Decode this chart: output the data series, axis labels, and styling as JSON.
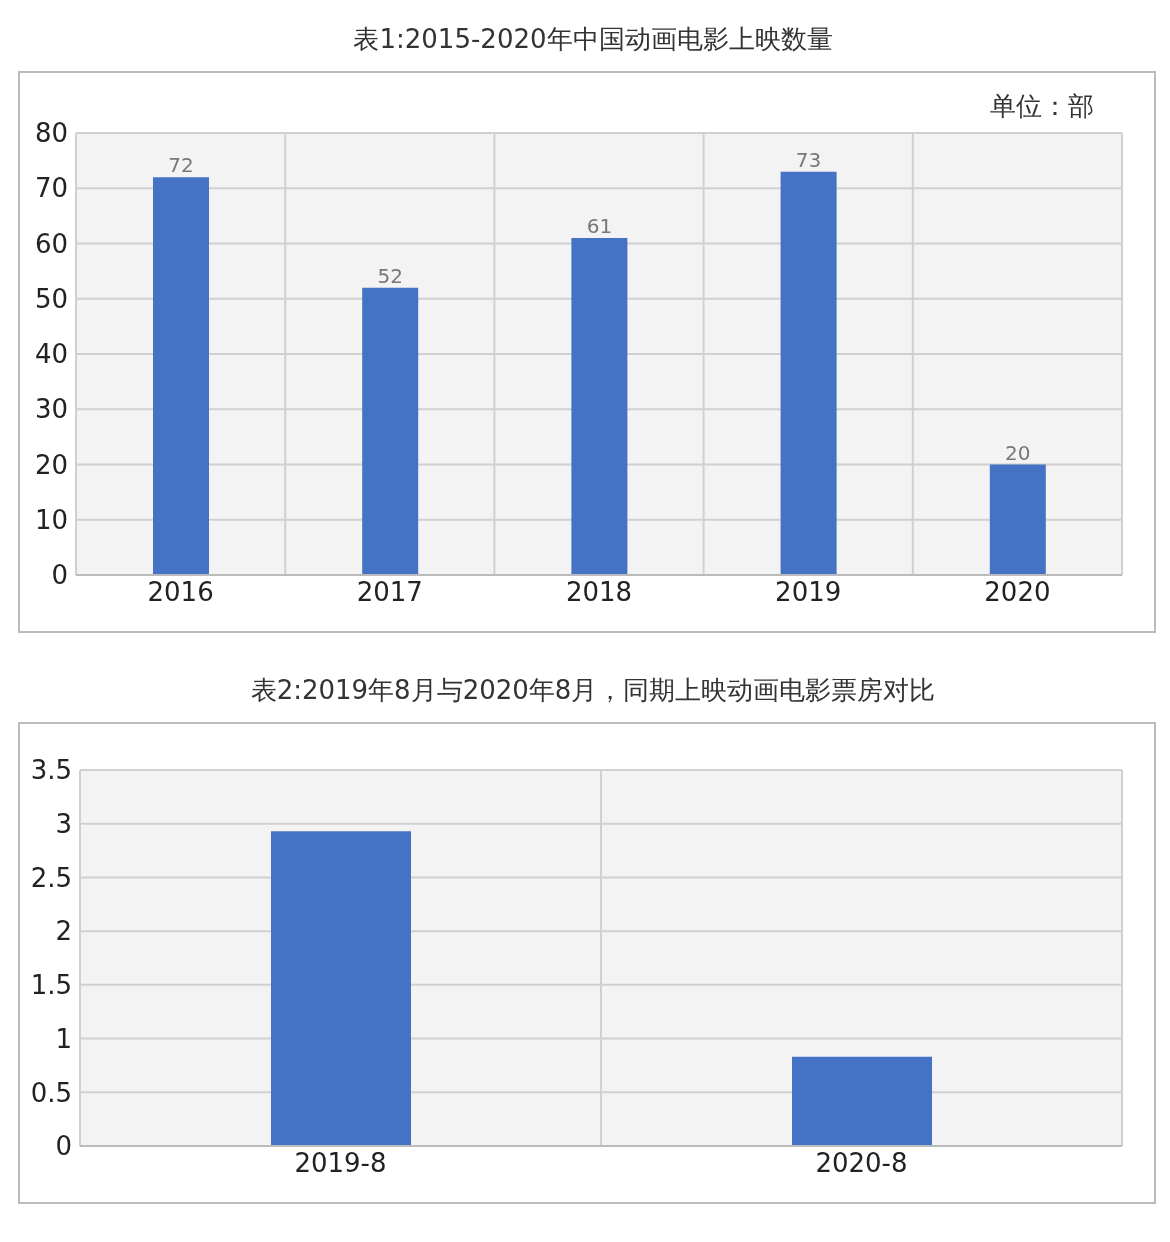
{
  "chart_data": [
    {
      "type": "bar",
      "title": "表1:2015-2020年中国动画电影上映数量",
      "annotations": [
        "单位：部"
      ],
      "categories": [
        "2016",
        "2017",
        "2018",
        "2019",
        "2020"
      ],
      "values": [
        72,
        52,
        61,
        73,
        20
      ],
      "color": "#4472c4",
      "ylim": [
        0,
        80
      ],
      "yticks": [
        0,
        10,
        20,
        30,
        40,
        50,
        60,
        70,
        80
      ],
      "grid": true,
      "data_labels": true
    },
    {
      "type": "bar",
      "title": "表2:2019年8月与2020年8月，同期上映动画电影票房对比",
      "categories": [
        "2019-8",
        "2020-8"
      ],
      "values": [
        2.93,
        0.83
      ],
      "color": "#4472c4",
      "ylim": [
        0,
        3.5
      ],
      "yticks": [
        0,
        0.5,
        1,
        1.5,
        2,
        2.5,
        3,
        3.5
      ],
      "grid": true
    }
  ]
}
